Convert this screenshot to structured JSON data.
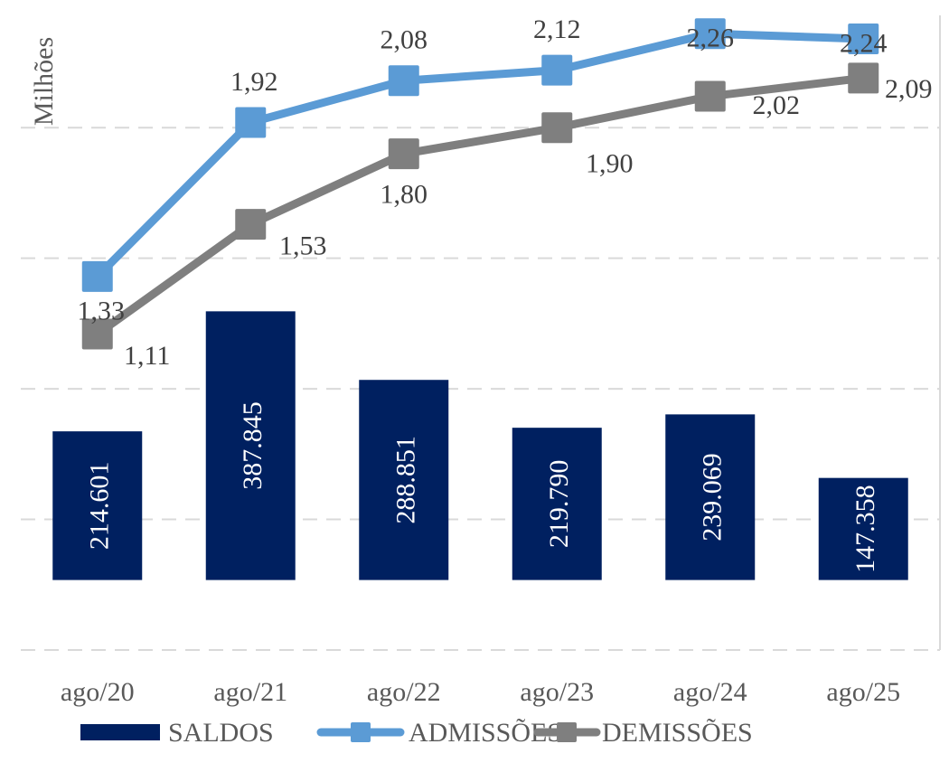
{
  "chart_data": {
    "type": "bar+line",
    "title": "",
    "xlabel": "",
    "ylabel": "Milhões",
    "categories": [
      "ago/20",
      "ago/21",
      "ago/22",
      "ago/23",
      "ago/24",
      "ago/25"
    ],
    "series": [
      {
        "name": "SALDOS",
        "type": "bar",
        "axis": "secondary",
        "color": "#002060",
        "values": [
          214601,
          387845,
          288851,
          219790,
          239069,
          147358
        ],
        "labels": [
          "214.601",
          "387.845",
          "288.851",
          "219.790",
          "239.069",
          "147.358"
        ]
      },
      {
        "name": "ADMISSÕES",
        "type": "line",
        "axis": "primary",
        "color": "#5B9BD5",
        "marker": "square",
        "values": [
          1.33,
          1.92,
          2.08,
          2.12,
          2.26,
          2.24
        ],
        "labels": [
          "1,33",
          "1,92",
          "2,08",
          "2,12",
          "2,26",
          "2,24"
        ]
      },
      {
        "name": "DEMISSÕES",
        "type": "line",
        "axis": "primary",
        "color": "#7F7F7F",
        "marker": "square",
        "values": [
          1.11,
          1.53,
          1.8,
          1.9,
          2.02,
          2.09
        ],
        "labels": [
          "1,11",
          "1,53",
          "1,80",
          "1,90",
          "2,02",
          "2,09"
        ]
      }
    ],
    "ylim_lines": [
      -0.1,
      2.33
    ],
    "ylim_bars": [
      -101000,
      815000
    ],
    "gridlines_lines": [
      -0.1,
      0.4,
      0.9,
      1.4,
      1.9
    ],
    "grid": true,
    "legend_position": "bottom",
    "legend": [
      "SALDOS",
      "ADMISSÕES",
      "DEMISSÕES"
    ]
  }
}
